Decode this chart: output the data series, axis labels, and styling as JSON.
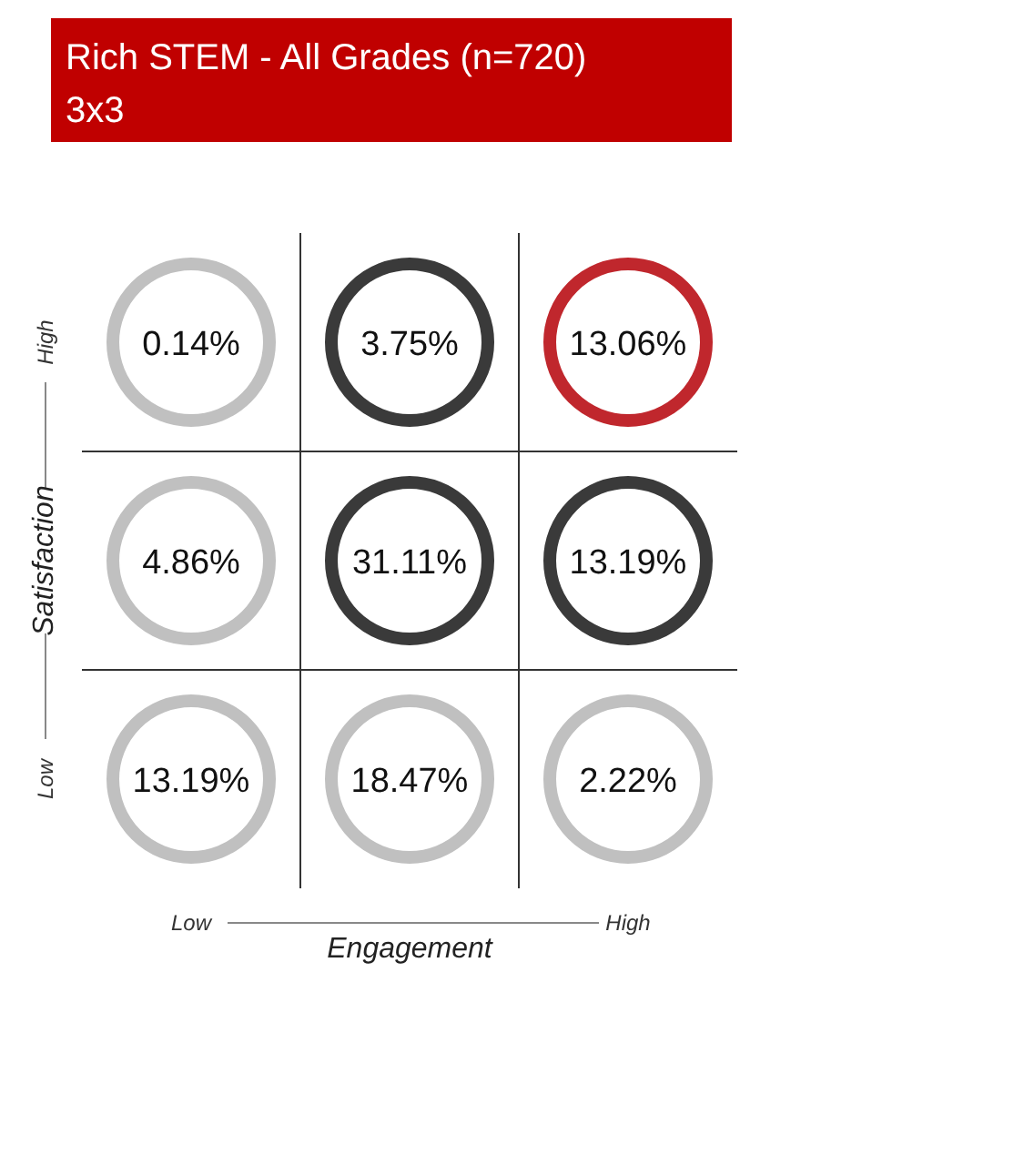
{
  "chart_data": {
    "type": "heatmap",
    "title": "Rich STEM - All Grades (n=720)",
    "subtitle": "3x3",
    "xlabel": "Engagement",
    "ylabel": "Satisfaction",
    "categories": [
      "Low",
      null,
      "High"
    ],
    "y_categories": [
      "High",
      null,
      "Low"
    ],
    "cells": [
      [
        0.14,
        3.75,
        13.06
      ],
      [
        4.86,
        31.11,
        13.19
      ],
      [
        13.19,
        18.47,
        2.22
      ]
    ],
    "cell_labels": [
      [
        "0.14%",
        "3.75%",
        "13.06%"
      ],
      [
        "4.86%",
        "31.11%",
        "13.19%"
      ],
      [
        "13.19%",
        "18.47%",
        "2.22%"
      ]
    ],
    "colors": [
      [
        "#c0c0c0",
        "#3a3a3a",
        "#c0272d"
      ],
      [
        "#c0c0c0",
        "#3a3a3a",
        "#3a3a3a"
      ],
      [
        "#c0c0c0",
        "#c0c0c0",
        "#c0c0c0"
      ]
    ]
  }
}
